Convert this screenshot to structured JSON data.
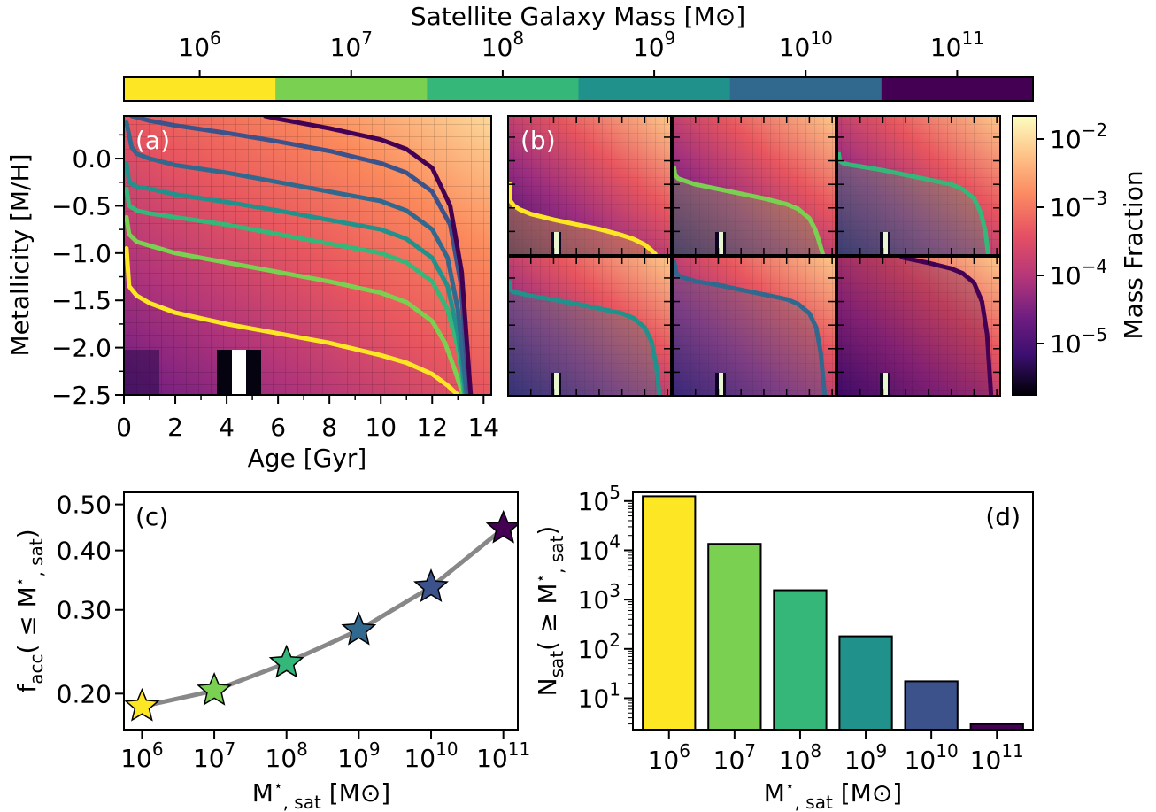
{
  "colorbar_top": {
    "label": "Satellite Galaxy Mass [M⊙]",
    "ticks": [
      {
        "base": "10",
        "exp": "6"
      },
      {
        "base": "10",
        "exp": "7"
      },
      {
        "base": "10",
        "exp": "8"
      },
      {
        "base": "10",
        "exp": "9"
      },
      {
        "base": "10",
        "exp": "10"
      },
      {
        "base": "10",
        "exp": "11"
      }
    ],
    "segment_colors": [
      "#fde725",
      "#7ad151",
      "#35b779",
      "#21918c",
      "#31688e",
      "#440154"
    ]
  },
  "colorbar_right": {
    "label": "Mass Fraction",
    "ticks": [
      {
        "base": "10",
        "exp": "−2"
      },
      {
        "base": "10",
        "exp": "−3"
      },
      {
        "base": "10",
        "exp": "−4"
      },
      {
        "base": "10",
        "exp": "−5"
      }
    ],
    "colormap": "magma-like",
    "gradient_colors": [
      "#fcfdbf",
      "#fec287",
      "#fb8861",
      "#e55064",
      "#b73779",
      "#721f81",
      "#3b0f70",
      "#000004"
    ]
  },
  "panel_labels": {
    "a": "(a)",
    "b": "(b)",
    "c": "(c)",
    "d": "(d)"
  },
  "series_colors": [
    "#fde725",
    "#7ad151",
    "#35b779",
    "#21918c",
    "#31688e",
    "#3b528b",
    "#440154"
  ],
  "chart_data": [
    {
      "panel": "a",
      "type": "line",
      "xlabel": "Age [Gyr]",
      "ylabel": "Metallicity [M/H]",
      "xlim": [
        0,
        14.3
      ],
      "ylim": [
        -2.5,
        0.45
      ],
      "xticks": [
        "0",
        "2",
        "4",
        "6",
        "8",
        "10",
        "12",
        "14"
      ],
      "yticks": [
        "0.0",
        "−0.5",
        "−1.0",
        "−1.5",
        "−2.0",
        "−2.5"
      ],
      "ytick_values": [
        0.0,
        -0.5,
        -1.0,
        -1.5,
        -2.0,
        -2.5
      ],
      "series": [
        {
          "x": [
            0.1,
            0.2,
            0.5,
            1,
            2,
            4,
            6,
            8,
            10,
            11,
            12,
            12.6,
            13.0
          ],
          "y": [
            -0.95,
            -1.35,
            -1.45,
            -1.53,
            -1.63,
            -1.75,
            -1.85,
            -1.95,
            -2.08,
            -2.16,
            -2.28,
            -2.4,
            -2.5
          ]
        },
        {
          "x": [
            0.1,
            0.2,
            0.5,
            1,
            2,
            4,
            6,
            8,
            10,
            11,
            12,
            12.5,
            12.9,
            13.2
          ],
          "y": [
            -0.62,
            -0.8,
            -0.88,
            -0.92,
            -1.0,
            -1.1,
            -1.2,
            -1.3,
            -1.42,
            -1.52,
            -1.72,
            -1.95,
            -2.25,
            -2.5
          ]
        },
        {
          "x": [
            0.1,
            0.2,
            0.5,
            1,
            2,
            4,
            6,
            8,
            10,
            11,
            12,
            12.6,
            13.0,
            13.25
          ],
          "y": [
            -0.32,
            -0.5,
            -0.55,
            -0.58,
            -0.62,
            -0.7,
            -0.8,
            -0.9,
            -1.0,
            -1.1,
            -1.3,
            -1.6,
            -2.0,
            -2.5
          ]
        },
        {
          "x": [
            0.1,
            0.2,
            0.5,
            1,
            2,
            4,
            6,
            8,
            10,
            11,
            12,
            12.6,
            13.0,
            13.3
          ],
          "y": [
            -0.05,
            -0.25,
            -0.3,
            -0.32,
            -0.38,
            -0.46,
            -0.55,
            -0.65,
            -0.75,
            -0.85,
            -1.05,
            -1.35,
            -1.85,
            -2.5
          ]
        },
        {
          "x": [
            0.1,
            0.3,
            0.5,
            1,
            2,
            4,
            6,
            8,
            10,
            11,
            12,
            12.6,
            13.0,
            13.35
          ],
          "y": [
            0.38,
            0.12,
            0.05,
            0.0,
            -0.07,
            -0.15,
            -0.25,
            -0.35,
            -0.45,
            -0.55,
            -0.75,
            -1.05,
            -1.6,
            -2.5
          ]
        },
        {
          "x": [
            0.3,
            1,
            2,
            4,
            6,
            8,
            10,
            11,
            12,
            12.7,
            13.1,
            13.45
          ],
          "y": [
            0.45,
            0.4,
            0.35,
            0.27,
            0.18,
            0.08,
            -0.05,
            -0.15,
            -0.35,
            -0.7,
            -1.3,
            -2.5
          ]
        },
        {
          "x": [
            5.5,
            6,
            8,
            10,
            11,
            12,
            12.7,
            13.15,
            13.5
          ],
          "y": [
            0.45,
            0.42,
            0.32,
            0.2,
            0.1,
            -0.1,
            -0.5,
            -1.2,
            -2.5
          ]
        }
      ]
    },
    {
      "panel": "b",
      "type": "line",
      "subpanels": 6,
      "xlim": [
        0,
        14.3
      ],
      "ylim": [
        -2.5,
        0.45
      ]
    },
    {
      "panel": "c",
      "type": "line",
      "xlabel": "M⋆, sat [M⊙]",
      "ylabel": "facc( ≤ M⋆, sat)",
      "xlim": [
        5.75,
        11.2
      ],
      "ylim": [
        0.168,
        0.53
      ],
      "yscale": "log",
      "xticks": [
        {
          "base": "10",
          "exp": "6"
        },
        {
          "base": "10",
          "exp": "7"
        },
        {
          "base": "10",
          "exp": "8"
        },
        {
          "base": "10",
          "exp": "9"
        },
        {
          "base": "10",
          "exp": "10"
        },
        {
          "base": "10",
          "exp": "11"
        }
      ],
      "yticks": [
        "0.20",
        "0.30",
        "0.40",
        "0.50"
      ],
      "ytick_values": [
        0.2,
        0.3,
        0.4,
        0.5
      ],
      "x": [
        6,
        7,
        8,
        9,
        10,
        11
      ],
      "y": [
        0.188,
        0.203,
        0.232,
        0.272,
        0.335,
        0.445
      ]
    },
    {
      "panel": "d",
      "type": "bar",
      "xlabel": "M⋆, sat [M⊙]",
      "ylabel": "Nsat( ≥ M⋆, sat)",
      "yscale": "log",
      "ylim": [
        2.3,
        150000
      ],
      "categories": [
        {
          "base": "10",
          "exp": "6"
        },
        {
          "base": "10",
          "exp": "7"
        },
        {
          "base": "10",
          "exp": "8"
        },
        {
          "base": "10",
          "exp": "9"
        },
        {
          "base": "10",
          "exp": "10"
        },
        {
          "base": "10",
          "exp": "11"
        }
      ],
      "yticks": [
        {
          "base": "10",
          "exp": "1"
        },
        {
          "base": "10",
          "exp": "2"
        },
        {
          "base": "10",
          "exp": "3"
        },
        {
          "base": "10",
          "exp": "4"
        },
        {
          "base": "10",
          "exp": "5"
        }
      ],
      "values": [
        125000,
        13500,
        1550,
        180,
        22,
        3
      ]
    }
  ]
}
